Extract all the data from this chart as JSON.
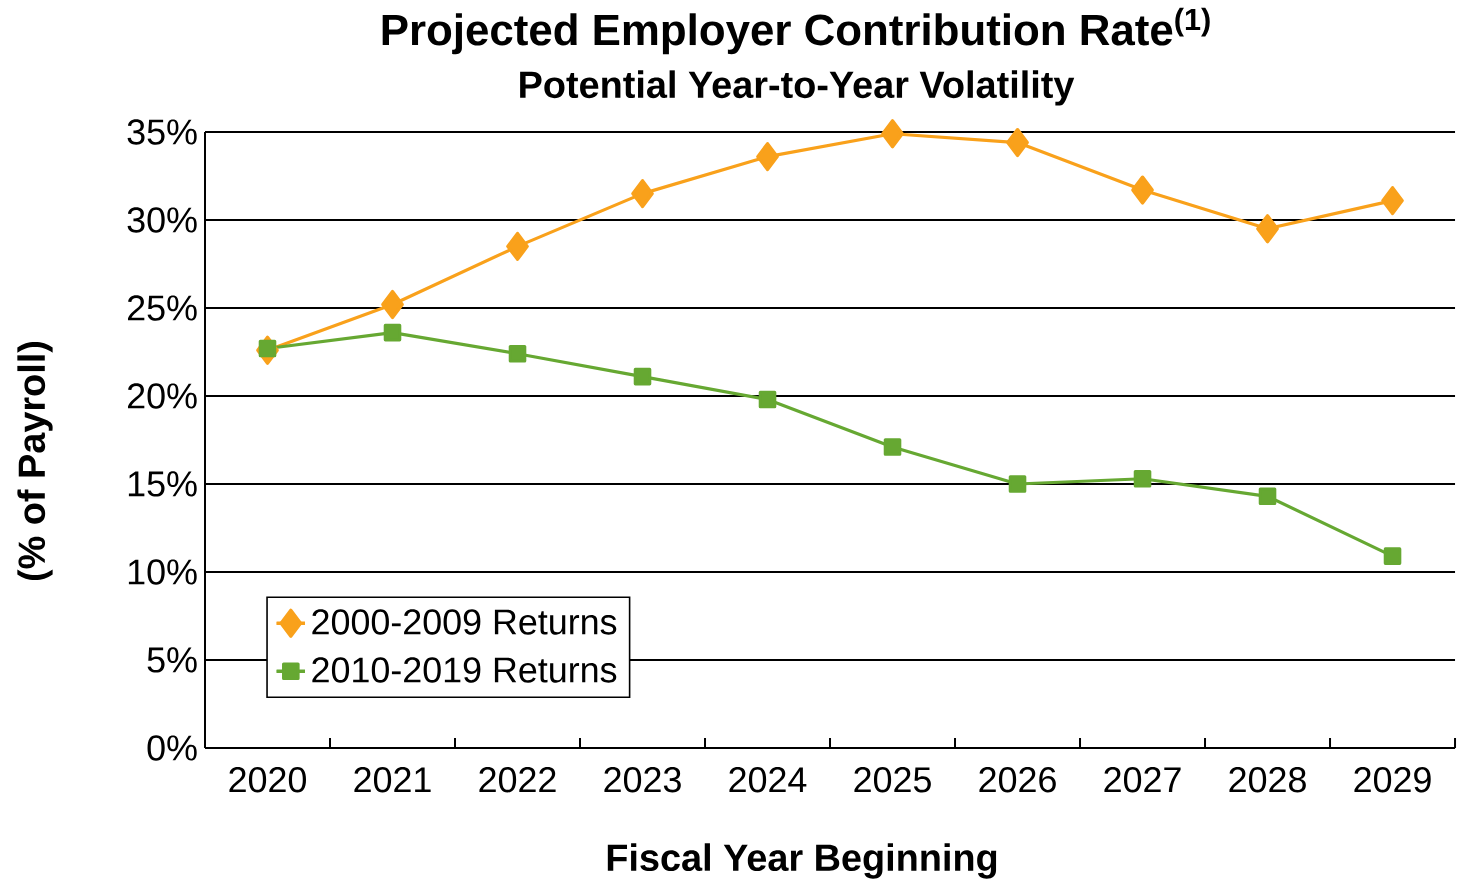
{
  "chart_data": {
    "type": "line",
    "title": "Projected Employer Contribution Rate$^{(1)}$",
    "subtitle": "Potential  Year-to-Year  Volatility",
    "xlabel": "Fiscal Year Beginning",
    "ylabel": "(% of Payroll)",
    "categories": [
      "2020",
      "2021",
      "2022",
      "2023",
      "2024",
      "2025",
      "2026",
      "2027",
      "2028",
      "2029"
    ],
    "series": [
      {
        "name": "2000-2009 Returns",
        "color": "#f9a11b",
        "marker": "diamond",
        "values": [
          22.6,
          25.2,
          28.5,
          31.5,
          33.6,
          34.9,
          34.4,
          31.7,
          29.5,
          31.1
        ]
      },
      {
        "name": "2010-2019 Returns",
        "color": "#66a832",
        "marker": "square",
        "values": [
          22.7,
          23.6,
          22.4,
          21.1,
          19.8,
          17.1,
          15.0,
          15.3,
          14.3,
          10.9
        ]
      }
    ],
    "ylim": [
      0,
      35
    ],
    "yticks": [
      {
        "value": 0,
        "label": "0%"
      },
      {
        "value": 5,
        "label": "5%"
      },
      {
        "value": 10,
        "label": "10%"
      },
      {
        "value": 15,
        "label": "15%"
      },
      {
        "value": 20,
        "label": "20%"
      },
      {
        "value": 25,
        "label": "25%"
      },
      {
        "value": 30,
        "label": "30%"
      },
      {
        "value": 35,
        "label": "35%"
      }
    ],
    "grid": "y",
    "legend": "bottom left",
    "line_style": "solid"
  }
}
